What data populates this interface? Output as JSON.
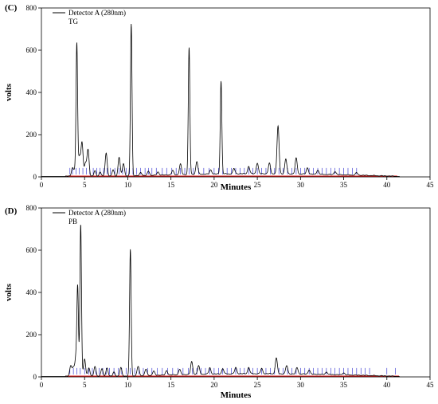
{
  "chart_data": [
    {
      "panel": "(C)",
      "type": "line",
      "xlabel": "Minutes",
      "ylabel": "volts",
      "xlim": [
        0,
        45
      ],
      "ylim": [
        0,
        800
      ],
      "xticks": [
        0,
        5,
        10,
        15,
        20,
        25,
        30,
        35,
        40,
        45
      ],
      "yticks": [
        0,
        200,
        400,
        600,
        800
      ],
      "legend": [
        "Detector A (280nm)",
        "TG"
      ],
      "legend_placement": "top-left",
      "baseline_start": 2.8,
      "baseline_end": 41.2,
      "peaks": [
        {
          "t": 3.6,
          "h": 40
        },
        {
          "t": 3.9,
          "h": 30
        },
        {
          "t": 4.1,
          "h": 620
        },
        {
          "t": 4.4,
          "h": 90
        },
        {
          "t": 4.7,
          "h": 160
        },
        {
          "t": 5.1,
          "h": 60
        },
        {
          "t": 5.4,
          "h": 125
        },
        {
          "t": 6.2,
          "h": 25
        },
        {
          "t": 6.8,
          "h": 20
        },
        {
          "t": 7.5,
          "h": 110
        },
        {
          "t": 8.3,
          "h": 30
        },
        {
          "t": 9.0,
          "h": 90
        },
        {
          "t": 9.5,
          "h": 60
        },
        {
          "t": 10.4,
          "h": 720
        },
        {
          "t": 11.5,
          "h": 15
        },
        {
          "t": 12.4,
          "h": 20
        },
        {
          "t": 13.5,
          "h": 15
        },
        {
          "t": 15.2,
          "h": 20
        },
        {
          "t": 16.1,
          "h": 50
        },
        {
          "t": 17.1,
          "h": 600
        },
        {
          "t": 18.0,
          "h": 60
        },
        {
          "t": 19.6,
          "h": 20
        },
        {
          "t": 20.8,
          "h": 440
        },
        {
          "t": 22.3,
          "h": 25
        },
        {
          "t": 24.0,
          "h": 35
        },
        {
          "t": 25.0,
          "h": 50
        },
        {
          "t": 26.4,
          "h": 50
        },
        {
          "t": 27.4,
          "h": 225
        },
        {
          "t": 28.3,
          "h": 70
        },
        {
          "t": 29.5,
          "h": 75
        },
        {
          "t": 30.8,
          "h": 30
        },
        {
          "t": 32.0,
          "h": 20
        },
        {
          "t": 34.0,
          "h": 15
        },
        {
          "t": 36.5,
          "h": 12
        }
      ],
      "event_marks": [
        3.3,
        3.6,
        4.0,
        4.4,
        4.8,
        5.2,
        5.6,
        6.0,
        6.4,
        6.8,
        7.2,
        7.6,
        8.0,
        8.5,
        9.0,
        9.4,
        9.8,
        10.2,
        10.6,
        11.0,
        11.5,
        12.0,
        12.4,
        12.8,
        13.3,
        14.0,
        14.5,
        15.1,
        15.6,
        16.1,
        16.6,
        17.1,
        17.6,
        18.2,
        18.8,
        19.4,
        20.0,
        20.5,
        21.0,
        21.5,
        22.0,
        22.5,
        23.0,
        23.5,
        24.0,
        24.5,
        25.0,
        25.5,
        26.0,
        26.5,
        27.0,
        27.5,
        28.0,
        28.5,
        29.0,
        29.5,
        30.0,
        30.5,
        31.0,
        31.5,
        32.0,
        32.5,
        33.0,
        33.5,
        34.0,
        34.5,
        35.0,
        35.5,
        36.0,
        36.5
      ]
    },
    {
      "panel": "(D)",
      "type": "line",
      "xlabel": "Minutes",
      "ylabel": "volts",
      "xlim": [
        0,
        45
      ],
      "ylim": [
        0,
        800
      ],
      "xticks": [
        0,
        5,
        10,
        15,
        20,
        25,
        30,
        35,
        40,
        45
      ],
      "yticks": [
        0,
        200,
        400,
        600,
        800
      ],
      "legend": [
        "Detector A (280nm)",
        "PB"
      ],
      "legend_placement": "top-left",
      "baseline_start": 2.8,
      "baseline_end": 41.4,
      "peaks": [
        {
          "t": 3.4,
          "h": 50
        },
        {
          "t": 3.7,
          "h": 40
        },
        {
          "t": 4.0,
          "h": 90
        },
        {
          "t": 4.2,
          "h": 410
        },
        {
          "t": 4.55,
          "h": 720
        },
        {
          "t": 5.0,
          "h": 80
        },
        {
          "t": 5.5,
          "h": 40
        },
        {
          "t": 6.2,
          "h": 45
        },
        {
          "t": 7.0,
          "h": 35
        },
        {
          "t": 7.6,
          "h": 40
        },
        {
          "t": 8.4,
          "h": 20
        },
        {
          "t": 9.2,
          "h": 40
        },
        {
          "t": 10.3,
          "h": 600
        },
        {
          "t": 11.2,
          "h": 45
        },
        {
          "t": 12.1,
          "h": 30
        },
        {
          "t": 13.0,
          "h": 20
        },
        {
          "t": 14.5,
          "h": 20
        },
        {
          "t": 16.0,
          "h": 25
        },
        {
          "t": 17.4,
          "h": 60
        },
        {
          "t": 18.2,
          "h": 40
        },
        {
          "t": 19.5,
          "h": 30
        },
        {
          "t": 21.0,
          "h": 25
        },
        {
          "t": 22.5,
          "h": 30
        },
        {
          "t": 24.0,
          "h": 30
        },
        {
          "t": 25.5,
          "h": 25
        },
        {
          "t": 27.2,
          "h": 75
        },
        {
          "t": 28.4,
          "h": 40
        },
        {
          "t": 29.6,
          "h": 30
        },
        {
          "t": 31.0,
          "h": 20
        },
        {
          "t": 33.0,
          "h": 12
        },
        {
          "t": 35.0,
          "h": 10
        }
      ],
      "event_marks": [
        3.3,
        3.7,
        4.1,
        4.5,
        5.0,
        5.5,
        5.9,
        6.3,
        6.7,
        7.1,
        7.5,
        7.9,
        8.4,
        8.9,
        9.3,
        9.8,
        10.3,
        10.8,
        11.3,
        11.8,
        12.3,
        12.8,
        13.4,
        14.0,
        14.6,
        15.2,
        15.8,
        16.4,
        17.0,
        17.5,
        18.0,
        18.5,
        19.0,
        19.5,
        20.0,
        20.5,
        21.0,
        21.5,
        22.0,
        22.5,
        23.0,
        23.5,
        24.0,
        24.5,
        25.0,
        25.5,
        26.0,
        26.5,
        27.0,
        27.5,
        28.0,
        28.5,
        29.0,
        29.5,
        30.0,
        30.5,
        31.0,
        31.5,
        32.0,
        32.5,
        33.0,
        33.5,
        34.0,
        34.5,
        35.0,
        35.5,
        36.0,
        36.5,
        37.0,
        37.5,
        38.0,
        40.0,
        41.0
      ]
    }
  ],
  "colors": {
    "trace": "#000000",
    "baseline": "#e00000",
    "event_marks": "#2222cc",
    "axis": "#000000"
  }
}
